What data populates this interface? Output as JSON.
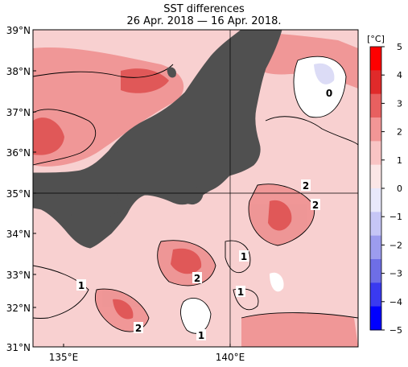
{
  "title": "SST differences",
  "subtitle": "26 Apr. 2018 — 16 Apr. 2018.",
  "y_axis": {
    "labels": [
      "39°N",
      "38°N",
      "37°N",
      "36°N",
      "35°N",
      "34°N",
      "33°N",
      "32°N",
      "31°N"
    ]
  },
  "x_axis": {
    "labels": [
      "135°E",
      "140°E"
    ]
  },
  "colorbar": {
    "unit": "[°C]",
    "ticks": [
      "5",
      "4",
      "3",
      "2",
      "1",
      "0",
      "−1",
      "−2",
      "−3",
      "−4",
      "−5"
    ],
    "range": [
      -5,
      5
    ],
    "colors": [
      "#0000ff",
      "#3a3af0",
      "#6e6ee6",
      "#9c9cee",
      "#c6c6f6",
      "#e8e8fb",
      "#fbe6e6",
      "#f9c4c4",
      "#f29696",
      "#e86060",
      "#e02a2a",
      "#ff0000"
    ]
  },
  "contour_labels": [
    "0",
    "2",
    "2",
    "1",
    "2",
    "1",
    "1",
    "2",
    "1",
    "1"
  ],
  "colors": {
    "land": "#505050",
    "ocean_base": "#f7c8c8",
    "warm": "#ef8a8a",
    "hot": "#e45050"
  }
}
